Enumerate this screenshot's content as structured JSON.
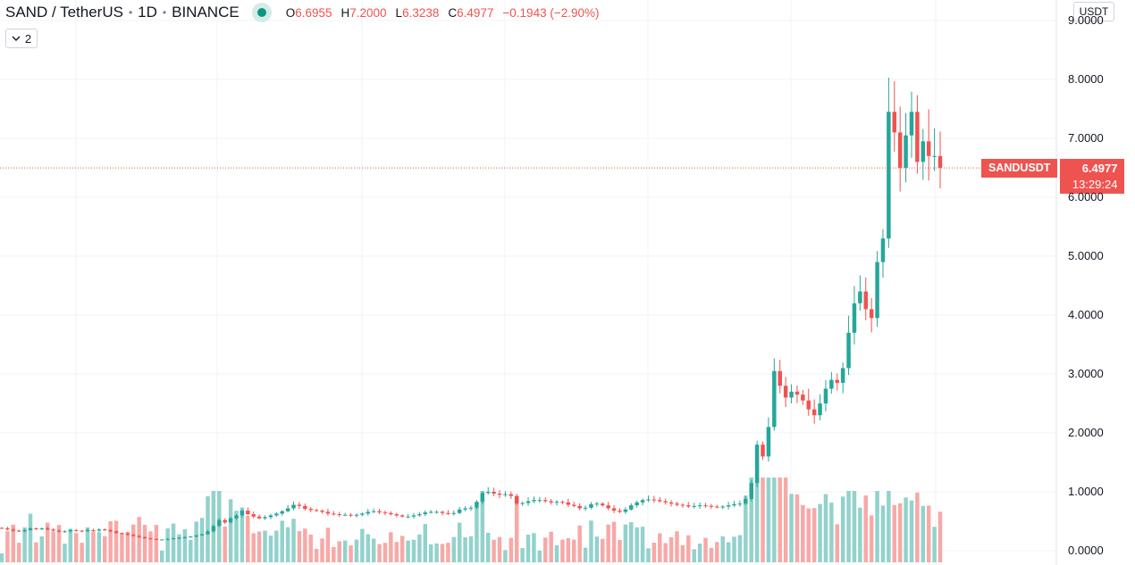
{
  "header": {
    "symbol": "SAND / TetherUS",
    "interval": "1D",
    "exchange": "BINANCE",
    "ohlc": {
      "open_label": "O",
      "open": "6.6955",
      "high_label": "H",
      "high": "7.2000",
      "low_label": "L",
      "low": "6.3238",
      "close_label": "C",
      "close": "6.4977",
      "change": "−0.1943 (−2.90%)"
    }
  },
  "indicators_button": {
    "count": "2"
  },
  "currency_button": {
    "label": "USDT"
  },
  "last_price": {
    "ticker": "SANDUSDT",
    "price": "6.4977",
    "countdown": "13:29:24"
  },
  "colors": {
    "up": "#26a69a",
    "down": "#ef5350",
    "up_volume": "#92d2cc",
    "down_volume": "#f7a9a7",
    "grid": "#f0f3fa"
  },
  "chart_data": {
    "type": "candlestick",
    "title": "SAND / TetherUS · 1D · BINANCE",
    "ylabel": "USDT",
    "ylim": [
      0,
      9
    ],
    "y_ticks": [
      "0.0000",
      "1.0000",
      "2.0000",
      "3.0000",
      "4.0000",
      "5.0000",
      "6.0000",
      "7.0000",
      "8.0000",
      "9.0000"
    ],
    "grid": true,
    "series": [
      {
        "name": "SANDUSDT",
        "close": [
          0.38,
          0.36,
          0.34,
          0.33,
          0.35,
          0.38,
          0.37,
          0.38,
          0.36,
          0.34,
          0.32,
          0.33,
          0.35,
          0.34,
          0.33,
          0.35,
          0.34,
          0.36,
          0.35,
          0.33,
          0.3,
          0.29,
          0.27,
          0.25,
          0.23,
          0.21,
          0.2,
          0.19,
          0.19,
          0.2,
          0.21,
          0.22,
          0.23,
          0.24,
          0.26,
          0.28,
          0.33,
          0.42,
          0.52,
          0.48,
          0.55,
          0.6,
          0.68,
          0.62,
          0.58,
          0.55,
          0.57,
          0.6,
          0.63,
          0.67,
          0.72,
          0.78,
          0.76,
          0.71,
          0.69,
          0.68,
          0.66,
          0.63,
          0.62,
          0.61,
          0.61,
          0.6,
          0.61,
          0.63,
          0.66,
          0.67,
          0.65,
          0.64,
          0.62,
          0.6,
          0.58,
          0.58,
          0.6,
          0.62,
          0.65,
          0.66,
          0.66,
          0.64,
          0.63,
          0.64,
          0.7,
          0.72,
          0.73,
          0.83,
          0.98,
          1.0,
          0.97,
          0.95,
          0.96,
          0.93,
          0.8,
          0.81,
          0.84,
          0.86,
          0.86,
          0.84,
          0.82,
          0.83,
          0.82,
          0.78,
          0.76,
          0.72,
          0.73,
          0.79,
          0.8,
          0.77,
          0.72,
          0.68,
          0.66,
          0.7,
          0.77,
          0.82,
          0.86,
          0.87,
          0.86,
          0.84,
          0.82,
          0.8,
          0.78,
          0.77,
          0.75,
          0.76,
          0.77,
          0.76,
          0.75,
          0.74,
          0.75,
          0.77,
          0.79,
          0.8,
          0.88,
          1.15,
          1.8,
          1.6,
          2.1,
          3.05,
          2.8,
          2.6,
          2.7,
          2.65,
          2.55,
          2.4,
          2.3,
          2.5,
          2.75,
          2.9,
          2.85,
          3.1,
          3.7,
          4.2,
          4.4,
          4.1,
          3.95,
          4.9,
          5.3,
          7.45,
          7.1,
          6.5,
          7.05,
          7.45,
          6.6,
          6.95,
          6.7,
          6.7,
          6.5
        ]
      }
    ],
    "volume_note": "relative volume bars at bottom of pane"
  }
}
